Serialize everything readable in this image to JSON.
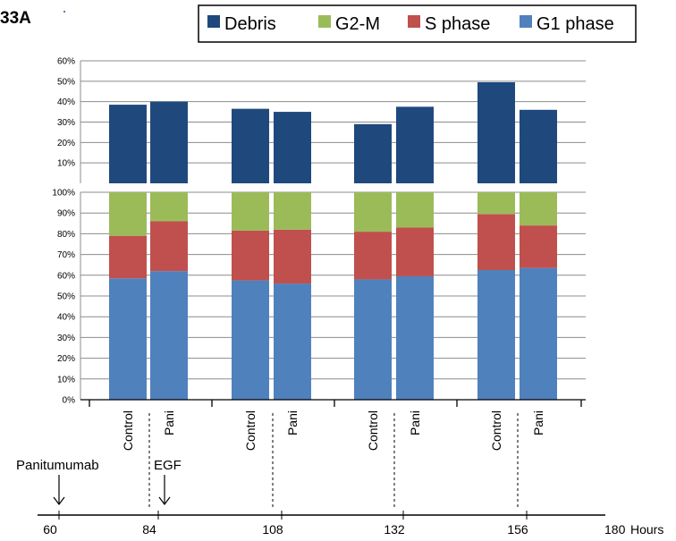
{
  "figure_label": "33A",
  "legend": [
    {
      "label": "Debris",
      "color": "#1f497d"
    },
    {
      "label": "G2-M",
      "color": "#9bbb59"
    },
    {
      "label": "S phase",
      "color": "#c0504d"
    },
    {
      "label": "G1 phase",
      "color": "#4f81bd"
    }
  ],
  "chart_data": [
    {
      "type": "bar",
      "name": "debris",
      "categories": [
        "Control",
        "Pani",
        "Control",
        "Pani",
        "Control",
        "Pani",
        "Control",
        "Pani"
      ],
      "series": [
        {
          "name": "Debris",
          "values": [
            38.5,
            40,
            36.5,
            35,
            29,
            37.5,
            49.5,
            36
          ]
        }
      ],
      "ylim": [
        0,
        60
      ],
      "yticks": [
        "60%",
        "50%",
        "40%",
        "30%",
        "20%",
        "10%"
      ],
      "grid": true
    },
    {
      "type": "bar",
      "stacked": true,
      "name": "cell-cycle",
      "categories": [
        "Control",
        "Pani",
        "Control",
        "Pani",
        "Control",
        "Pani",
        "Control",
        "Pani"
      ],
      "series": [
        {
          "name": "G1 phase",
          "values": [
            58.5,
            62,
            57.5,
            56,
            58,
            59.5,
            62.5,
            63.5
          ]
        },
        {
          "name": "S phase",
          "values": [
            20.5,
            24,
            24,
            26,
            23,
            23.5,
            27,
            20.5
          ]
        },
        {
          "name": "G2-M",
          "values": [
            21,
            14,
            18.5,
            18,
            19,
            17,
            10.5,
            16
          ]
        }
      ],
      "ylim": [
        0,
        100
      ],
      "yticks": [
        "100%",
        "90%",
        "80%",
        "70%",
        "60%",
        "50%",
        "40%",
        "30%",
        "20%",
        "10%",
        "0%"
      ],
      "grid": true
    }
  ],
  "timeline": {
    "ticks": [
      "60",
      "84",
      "108",
      "132",
      "156",
      "180"
    ],
    "unit": "Hours",
    "annotations": [
      "Panitumumab",
      "EGF"
    ]
  }
}
